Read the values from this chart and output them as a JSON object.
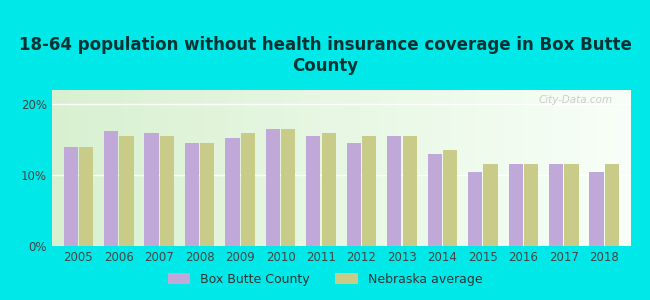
{
  "title": "18-64 population without health insurance coverage in Box Butte\nCounty",
  "years": [
    2005,
    2006,
    2007,
    2008,
    2009,
    2010,
    2011,
    2012,
    2013,
    2014,
    2015,
    2016,
    2017,
    2018
  ],
  "box_butte": [
    14.0,
    16.2,
    16.0,
    14.5,
    15.2,
    16.5,
    15.5,
    14.5,
    15.5,
    13.0,
    10.5,
    11.5,
    11.5,
    10.5
  ],
  "nebraska": [
    14.0,
    15.5,
    15.5,
    14.5,
    16.0,
    16.5,
    16.0,
    15.5,
    15.5,
    13.5,
    11.5,
    11.5,
    11.5,
    11.5
  ],
  "bar_color_county": "#c0a8d8",
  "bar_color_nebraska": "#c8cc88",
  "background_outer": "#00e8e8",
  "ylim": [
    0,
    22
  ],
  "yticks": [
    0,
    10,
    20
  ],
  "ytick_labels": [
    "0%",
    "10%",
    "20%"
  ],
  "legend_county": "Box Butte County",
  "legend_nebraska": "Nebraska average",
  "title_fontsize": 12,
  "tick_fontsize": 8.5,
  "legend_fontsize": 9
}
